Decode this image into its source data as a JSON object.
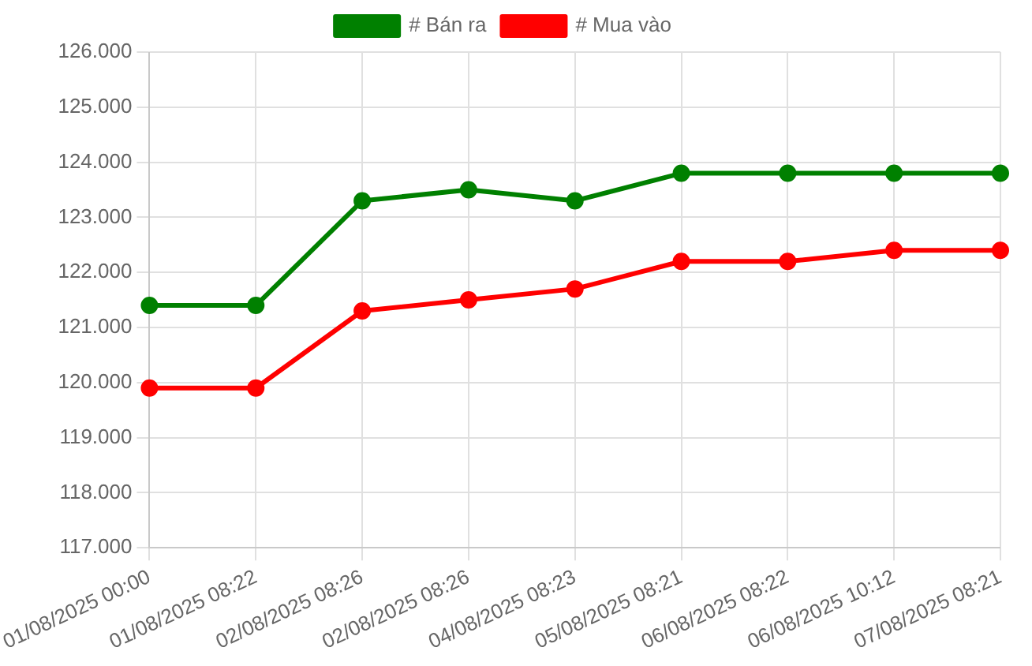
{
  "chart_data": {
    "type": "line",
    "categories": [
      "01/08/2025 00:00",
      "01/08/2025 08:22",
      "02/08/2025 08:26",
      "02/08/2025 08:26",
      "04/08/2025 08:23",
      "05/08/2025 08:21",
      "06/08/2025 08:22",
      "06/08/2025 10:12",
      "07/08/2025 08:21"
    ],
    "series": [
      {
        "name": "# Bán ra",
        "color": "#008000",
        "values": [
          121400,
          121400,
          123300,
          123500,
          123300,
          123800,
          123800,
          123800,
          123800
        ]
      },
      {
        "name": "# Mua vào",
        "color": "#ff0000",
        "values": [
          119900,
          119900,
          121300,
          121500,
          121700,
          122200,
          122200,
          122400,
          122400
        ]
      }
    ],
    "ylim": [
      117000,
      126000
    ],
    "yticks": [
      {
        "value": 117000,
        "label": "117.000"
      },
      {
        "value": 118000,
        "label": "118.000"
      },
      {
        "value": 119000,
        "label": "119.000"
      },
      {
        "value": 120000,
        "label": "120.000"
      },
      {
        "value": 121000,
        "label": "121.000"
      },
      {
        "value": 122000,
        "label": "122.000"
      },
      {
        "value": 123000,
        "label": "123.000"
      },
      {
        "value": 124000,
        "label": "124.000"
      },
      {
        "value": 125000,
        "label": "125.000"
      },
      {
        "value": 126000,
        "label": "126.000"
      }
    ],
    "grid": true,
    "legend": "top",
    "marker": "circle",
    "line_style": "solid"
  }
}
